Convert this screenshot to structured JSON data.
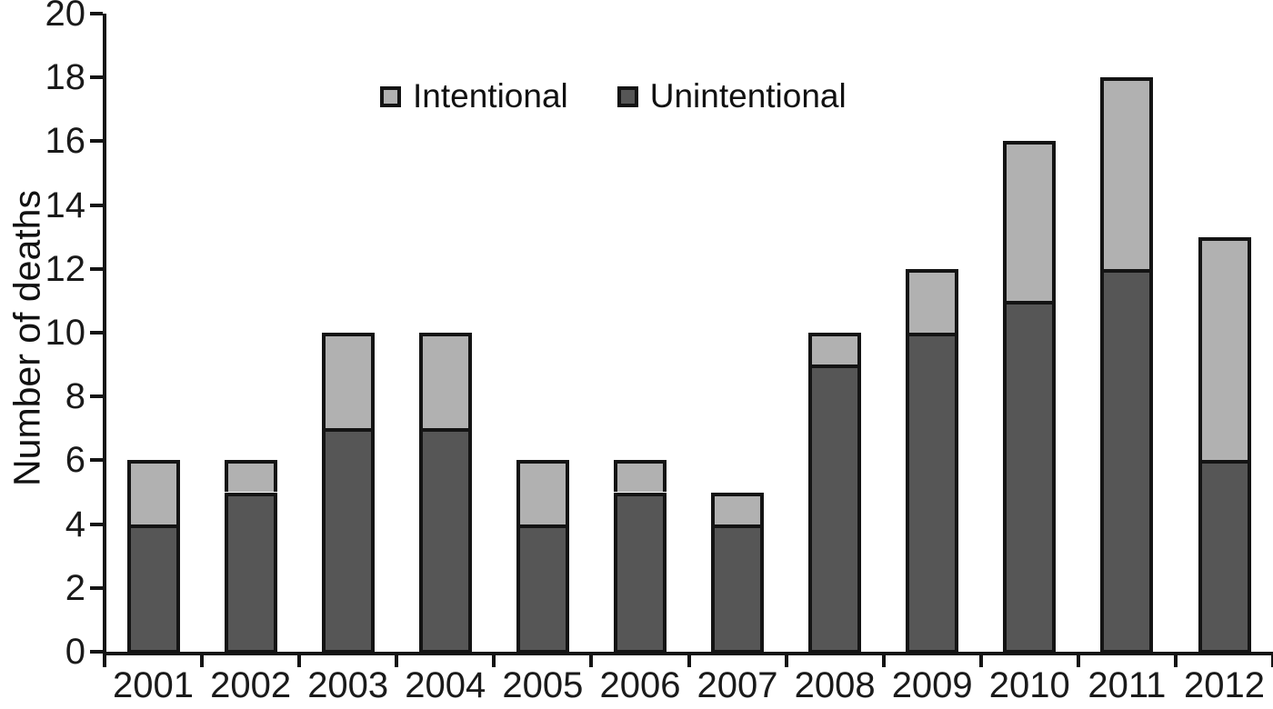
{
  "chart_data": {
    "type": "bar",
    "stacked": true,
    "title": "",
    "xlabel": "",
    "ylabel": "Number of deaths",
    "categories": [
      "2001",
      "2002",
      "2003",
      "2004",
      "2005",
      "2006",
      "2007",
      "2008",
      "2009",
      "2010",
      "2011",
      "2012"
    ],
    "series": [
      {
        "name": "Unintentional",
        "color": "#565656",
        "values": [
          4,
          5,
          7,
          7,
          4,
          5,
          4,
          9,
          10,
          11,
          12,
          6
        ]
      },
      {
        "name": "Intentional",
        "color": "#b1b1b1",
        "values": [
          2,
          1,
          3,
          3,
          2,
          1,
          1,
          1,
          2,
          5,
          6,
          7
        ]
      }
    ],
    "totals": [
      6,
      6,
      10,
      10,
      6,
      6,
      5,
      10,
      12,
      16,
      18,
      13
    ],
    "ylim": [
      0,
      20
    ],
    "yticks": [
      0,
      2,
      4,
      6,
      8,
      10,
      12,
      14,
      16,
      18,
      20
    ],
    "grid": false,
    "legend": {
      "position": "top-center",
      "entries": [
        {
          "label": "Intentional",
          "color": "#b1b1b1"
        },
        {
          "label": "Unintentional",
          "color": "#565656"
        }
      ]
    },
    "axis_color": "#141414"
  }
}
